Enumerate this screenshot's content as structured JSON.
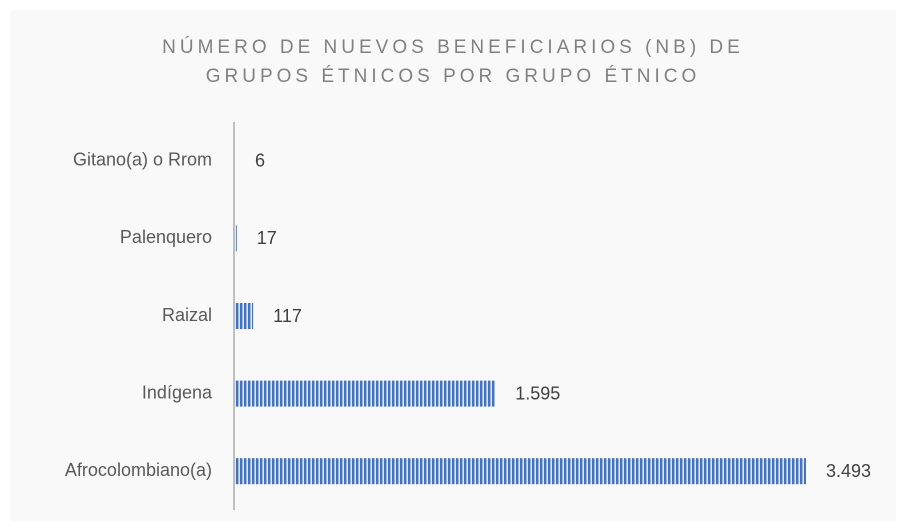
{
  "chart_data": {
    "type": "hbar",
    "title": [
      "NÚMERO DE NUEVOS BENEFICIARIOS (NB) DE",
      "GRUPOS ÉTNICOS POR GRUPO ÉTNICO"
    ],
    "categories": [
      "Gitano(a) o Rrom",
      "Palenquero",
      "Raizal",
      "Indígena",
      "Afrocolombiano(a)"
    ],
    "values": [
      6,
      17,
      117,
      1595,
      3493
    ],
    "value_labels": [
      "6",
      "17",
      "117",
      "1.595",
      "3.493"
    ],
    "color": "#4472c4"
  }
}
